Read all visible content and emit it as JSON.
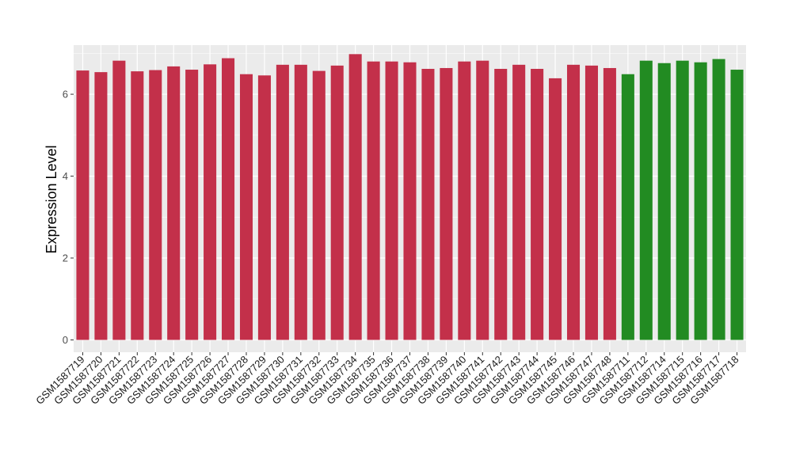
{
  "chart_data": {
    "type": "bar",
    "title": "",
    "xlabel": "",
    "ylabel": "Expression Level",
    "ylim": [
      -0.3,
      7.2
    ],
    "yticks": [
      0,
      2,
      4,
      6
    ],
    "grid": true,
    "legend": "none",
    "colors": {
      "group_a": "#C3304A",
      "group_b": "#228B22",
      "panel_bg": "#EBEBEB",
      "grid_major": "#FFFFFF",
      "axis_text": "#4D4D4D"
    },
    "categories": [
      "GSM1587719",
      "GSM1587720",
      "GSM1587721",
      "GSM1587722",
      "GSM1587723",
      "GSM1587724",
      "GSM1587725",
      "GSM1587726",
      "GSM1587727",
      "GSM1587728",
      "GSM1587729",
      "GSM1587730",
      "GSM1587731",
      "GSM1587732",
      "GSM1587733",
      "GSM1587734",
      "GSM1587735",
      "GSM1587736",
      "GSM1587737",
      "GSM1587738",
      "GSM1587739",
      "GSM1587740",
      "GSM1587741",
      "GSM1587742",
      "GSM1587743",
      "GSM1587744",
      "GSM1587745",
      "GSM1587746",
      "GSM1587747",
      "GSM1587748",
      "GSM1587711",
      "GSM1587712",
      "GSM1587714",
      "GSM1587715",
      "GSM1587716",
      "GSM1587717",
      "GSM1587718"
    ],
    "values": [
      6.58,
      6.54,
      6.82,
      6.56,
      6.59,
      6.68,
      6.6,
      6.73,
      6.88,
      6.49,
      6.46,
      6.72,
      6.72,
      6.57,
      6.7,
      6.98,
      6.8,
      6.8,
      6.78,
      6.62,
      6.64,
      6.8,
      6.82,
      6.62,
      6.72,
      6.62,
      6.39,
      6.72,
      6.7,
      6.64,
      6.49,
      6.82,
      6.76,
      6.82,
      6.78,
      6.86,
      6.6
    ],
    "groups": [
      "a",
      "a",
      "a",
      "a",
      "a",
      "a",
      "a",
      "a",
      "a",
      "a",
      "a",
      "a",
      "a",
      "a",
      "a",
      "a",
      "a",
      "a",
      "a",
      "a",
      "a",
      "a",
      "a",
      "a",
      "a",
      "a",
      "a",
      "a",
      "a",
      "a",
      "b",
      "b",
      "b",
      "b",
      "b",
      "b",
      "b"
    ]
  }
}
